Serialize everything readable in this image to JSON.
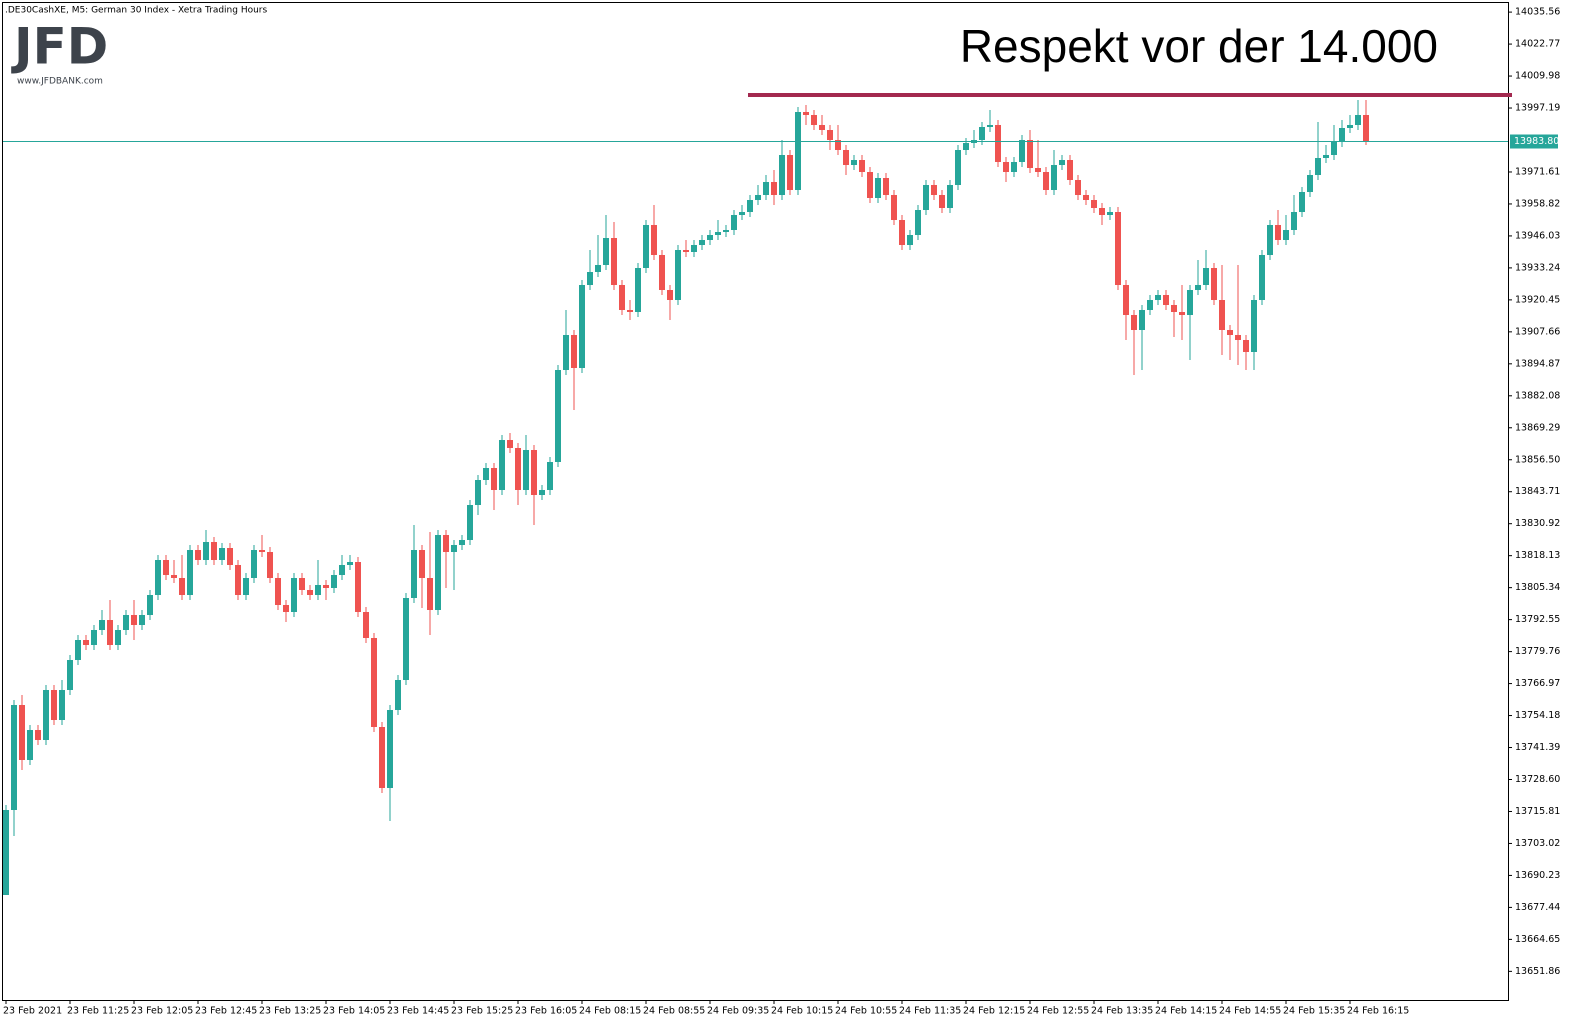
{
  "header": {
    "symbol_line": ".DE30CashXE, M5:  German 30 Index  - Xetra Trading Hours"
  },
  "logo": {
    "text": "JFD",
    "url": "www.JFDBANK.com"
  },
  "chart_data": {
    "type": "candlestick",
    "title": "Respekt vor der 14.000",
    "categories": [
      "23 Feb 2021",
      null,
      null,
      null,
      null,
      null,
      null,
      null,
      "23 Feb 11:25",
      null,
      null,
      null,
      null,
      null,
      null,
      null,
      "23 Feb 12:05",
      null,
      null,
      null,
      null,
      null,
      null,
      null,
      "23 Feb 12:45",
      null,
      null,
      null,
      null,
      null,
      null,
      null,
      "23 Feb 13:25",
      null,
      null,
      null,
      null,
      null,
      null,
      null,
      "23 Feb 14:05",
      null,
      null,
      null,
      null,
      null,
      null,
      null,
      "23 Feb 14:45",
      null,
      null,
      null,
      null,
      null,
      null,
      null,
      "23 Feb 15:25",
      null,
      null,
      null,
      null,
      null,
      null,
      null,
      "23 Feb 16:05",
      null,
      null,
      null,
      null,
      null,
      null,
      null,
      "24 Feb 08:15",
      null,
      null,
      null,
      null,
      null,
      null,
      null,
      "24 Feb 08:55",
      null,
      null,
      null,
      null,
      null,
      null,
      null,
      "24 Feb 09:35",
      null,
      null,
      null,
      null,
      null,
      null,
      null,
      "24 Feb 10:15",
      null,
      null,
      null,
      null,
      null,
      null,
      null,
      "24 Feb 10:55",
      null,
      null,
      null,
      null,
      null,
      null,
      null,
      "24 Feb 11:35",
      null,
      null,
      null,
      null,
      null,
      null,
      null,
      "24 Feb 12:15",
      null,
      null,
      null,
      null,
      null,
      null,
      null,
      "24 Feb 12:55",
      null,
      null,
      null,
      null,
      null,
      null,
      null,
      "24 Feb 13:35",
      null,
      null,
      null,
      null,
      null,
      null,
      null,
      "24 Feb 14:15",
      null,
      null,
      null,
      null,
      null,
      null,
      null,
      "24 Feb 14:55",
      null,
      null,
      null,
      null,
      null,
      null,
      null,
      "24 Feb 15:35",
      null,
      null,
      null,
      null,
      null,
      null,
      null,
      "24 Feb 16:15",
      null,
      null
    ],
    "open": [
      13682.4,
      13716.4,
      13758.4,
      13736.4,
      13748.4,
      13744.4,
      13764.4,
      13752.4,
      13764.4,
      13776.4,
      13784.4,
      13782.4,
      13788.4,
      13792.4,
      13782.4,
      13788.4,
      13794.4,
      13790.4,
      13794.4,
      13802.4,
      13816.4,
      13810.4,
      13809.2,
      13802.4,
      13820.4,
      13816.4,
      13823.6,
      13816.4,
      13821.2,
      13814.4,
      13802.4,
      13809.2,
      13820.4,
      13819.6,
      13809.2,
      13798.4,
      13795.6,
      13809.2,
      13804.4,
      13802.4,
      13806.4,
      13805.2,
      13810.4,
      13814.4,
      13815.6,
      13795.6,
      13785.2,
      13749.6,
      13725.2,
      13756.4,
      13768.4,
      13801.2,
      13820.4,
      13809.2,
      13796.4,
      13826.4,
      13819.6,
      13822.4,
      13824.4,
      13838.4,
      13848.4,
      13853.2,
      13844.4,
      13864.4,
      13861.2,
      13844.4,
      13860.4,
      13842.4,
      13844.4,
      13855.6,
      13892.4,
      13906.4,
      13893.2,
      13926.4,
      13931.6,
      13934.4,
      13945.2,
      13926.4,
      13916.4,
      13915.6,
      13933.2,
      13950.4,
      13938.4,
      13924.4,
      13920.4,
      13940.4,
      13939.6,
      13942.4,
      13944.4,
      13946.4,
      13947.6,
      13948.4,
      13954.4,
      13955.6,
      13960.4,
      13962.4,
      13967.6,
      13962.4,
      13978.4,
      13964.4,
      13995.6,
      13994.4,
      13990.4,
      13988.4,
      13984.4,
      13980.4,
      13974.4,
      13976.4,
      13971.6,
      13961.2,
      13969.2,
      13962.4,
      13952.4,
      13942.4,
      13946.4,
      13956.4,
      13966.4,
      13962.4,
      13957.2,
      13966.4,
      13980.4,
      13983.2,
      13984.4,
      13989.6,
      13990.4,
      13975.6,
      13971.6,
      13975.6,
      13984.4,
      13973.2,
      13971.6,
      13964.4,
      13974.4,
      13976.4,
      13968.4,
      13962.4,
      13960.4,
      13957.2,
      13954.4,
      13955.6,
      13926.4,
      13914.4,
      13908.4,
      13916.4,
      13920.4,
      13922.4,
      13918.4,
      13915.6,
      13914.4,
      13924.4,
      13926.4,
      13933.2,
      13920.4,
      13908.4,
      13906.4,
      13904.4,
      13899.6,
      13920.4,
      13938.4,
      13950.4,
      13944.4,
      13948.4,
      13955.6,
      13963.6,
      13970.4,
      13977.2,
      13978.4,
      13983.6,
      13989.2,
      13990.4,
      13994.4
    ],
    "high": [
      13718.4,
      13760.4,
      13762.4,
      13750.4,
      13750.4,
      13766.4,
      13766.4,
      13768.4,
      13778.4,
      13786.4,
      13786.4,
      13790.4,
      13796.4,
      13800.4,
      13790.4,
      13796.4,
      13800.4,
      13796.4,
      13804.4,
      13818.4,
      13818.4,
      13816.4,
      13818.4,
      13822.4,
      13822.4,
      13828.4,
      13825.6,
      13823.2,
      13823.2,
      13816.4,
      13811.2,
      13822.4,
      13826.4,
      13821.6,
      13811.2,
      13800.4,
      13811.2,
      13811.2,
      13806.4,
      13816.4,
      13808.4,
      13812.4,
      13818.4,
      13818.4,
      13817.6,
      13797.6,
      13787.2,
      13751.6,
      13758.4,
      13770.4,
      13803.2,
      13830.4,
      13822.4,
      13827.6,
      13828.4,
      13828.4,
      13824.4,
      13826.4,
      13840.4,
      13850.4,
      13855.2,
      13855.2,
      13866.4,
      13867.2,
      13863.2,
      13866.4,
      13862.4,
      13846.4,
      13857.6,
      13894.4,
      13916.4,
      13908.4,
      13928.4,
      13940.4,
      13946.4,
      13954.4,
      13951.6,
      13928.4,
      13920.4,
      13935.2,
      13952.4,
      13958.4,
      13940.4,
      13926.4,
      13942.4,
      13944.4,
      13944.4,
      13946.4,
      13948.4,
      13952.4,
      13950.4,
      13956.4,
      13958.4,
      13962.4,
      13966.4,
      13970.4,
      13972.4,
      13984.4,
      13980.4,
      13997.6,
      13998.4,
      13996.4,
      13994.4,
      13990.4,
      13990.4,
      13982.4,
      13978.4,
      13978.4,
      13973.6,
      13971.2,
      13971.2,
      13964.4,
      13954.4,
      13948.4,
      13958.4,
      13968.4,
      13968.4,
      13964.4,
      13968.4,
      13982.4,
      13985.2,
      13988.4,
      13991.6,
      13996.4,
      13992.4,
      13977.6,
      13977.6,
      13986.4,
      13988.4,
      13984.4,
      13973.6,
      13980.4,
      13978.4,
      13978.4,
      13970.4,
      13964.4,
      13962.4,
      13959.2,
      13957.6,
      13957.6,
      13928.4,
      13916.4,
      13918.4,
      13922.4,
      13924.4,
      13924.4,
      13920.4,
      13926.4,
      13926.4,
      13936.4,
      13940.4,
      13935.2,
      13934.4,
      13910.4,
      13934.4,
      13906.4,
      13922.4,
      13940.4,
      13952.4,
      13956.4,
      13954.4,
      13962.4,
      13965.6,
      13972.4,
      13991.6,
      13982.4,
      13990.4,
      13992.4,
      13994.4,
      14000.4,
      14000.4
    ],
    "low": [
      13682.4,
      13706.0,
      13732.4,
      13734.4,
      13742.4,
      13742.4,
      13750.4,
      13750.4,
      13762.4,
      13774.4,
      13780.4,
      13780.4,
      13786.4,
      13780.4,
      13780.4,
      13786.4,
      13784.4,
      13788.4,
      13792.4,
      13800.4,
      13808.4,
      13807.2,
      13800.4,
      13800.4,
      13814.4,
      13814.4,
      13814.4,
      13814.4,
      13812.4,
      13800.4,
      13800.4,
      13807.2,
      13817.6,
      13807.2,
      13796.4,
      13791.6,
      13793.6,
      13802.4,
      13800.4,
      13800.4,
      13800.4,
      13803.2,
      13808.4,
      13812.4,
      13793.6,
      13783.2,
      13747.6,
      13723.2,
      13712.0,
      13754.4,
      13766.4,
      13799.2,
      13797.2,
      13786.4,
      13794.4,
      13805.2,
      13804.4,
      13820.4,
      13822.4,
      13834.4,
      13846.4,
      13836.4,
      13842.4,
      13859.2,
      13838.4,
      13842.4,
      13830.4,
      13840.4,
      13842.4,
      13853.6,
      13890.4,
      13876.4,
      13891.2,
      13924.4,
      13929.6,
      13932.4,
      13924.4,
      13914.4,
      13912.4,
      13913.6,
      13931.2,
      13936.4,
      13922.4,
      13912.4,
      13918.4,
      13937.6,
      13937.6,
      13940.4,
      13942.4,
      13944.4,
      13945.6,
      13946.4,
      13952.4,
      13953.6,
      13958.4,
      13960.4,
      13958.4,
      13960.4,
      13962.4,
      13962.4,
      13990.4,
      13988.4,
      13986.4,
      13980.4,
      13978.4,
      13970.4,
      13972.4,
      13969.6,
      13959.2,
      13959.2,
      13960.4,
      13950.4,
      13940.4,
      13940.4,
      13944.4,
      13954.4,
      13960.4,
      13955.2,
      13955.2,
      13964.4,
      13978.4,
      13981.2,
      13982.4,
      13987.6,
      13973.6,
      13967.6,
      13969.6,
      13973.6,
      13971.2,
      13969.6,
      13962.4,
      13962.4,
      13972.4,
      13966.4,
      13960.4,
      13958.4,
      13955.2,
      13950.4,
      13952.4,
      13924.4,
      13904.4,
      13890.4,
      13892.4,
      13914.4,
      13918.4,
      13916.4,
      13905.6,
      13904.4,
      13896.4,
      13922.4,
      13924.4,
      13918.4,
      13898.4,
      13896.4,
      13894.4,
      13892.4,
      13892.4,
      13918.4,
      13936.4,
      13942.4,
      13942.4,
      13946.4,
      13953.6,
      13961.6,
      13968.4,
      13975.2,
      13976.4,
      13981.6,
      13987.2,
      13988.4,
      13982.4
    ],
    "close": [
      13716.4,
      13758.4,
      13736.4,
      13748.4,
      13744.4,
      13764.4,
      13752.4,
      13764.4,
      13776.4,
      13784.4,
      13782.4,
      13788.4,
      13792.4,
      13782.4,
      13788.4,
      13794.4,
      13790.4,
      13794.4,
      13802.4,
      13816.4,
      13810.4,
      13809.2,
      13802.4,
      13820.4,
      13816.4,
      13823.6,
      13816.4,
      13821.2,
      13814.4,
      13802.4,
      13809.2,
      13820.4,
      13819.6,
      13809.2,
      13798.4,
      13795.6,
      13809.2,
      13804.4,
      13802.4,
      13806.4,
      13805.2,
      13810.4,
      13814.4,
      13815.6,
      13795.6,
      13785.2,
      13749.6,
      13725.2,
      13756.4,
      13768.4,
      13801.2,
      13820.4,
      13809.2,
      13796.4,
      13826.4,
      13819.6,
      13822.4,
      13824.4,
      13838.4,
      13848.4,
      13853.2,
      13844.4,
      13864.4,
      13861.2,
      13844.4,
      13860.4,
      13842.4,
      13844.4,
      13855.6,
      13892.4,
      13906.4,
      13893.2,
      13926.4,
      13931.6,
      13934.4,
      13945.2,
      13926.4,
      13916.4,
      13915.6,
      13933.2,
      13950.4,
      13938.4,
      13924.4,
      13920.4,
      13940.4,
      13939.6,
      13942.4,
      13944.4,
      13946.4,
      13947.6,
      13948.4,
      13954.4,
      13955.6,
      13960.4,
      13962.4,
      13967.6,
      13962.4,
      13978.4,
      13964.4,
      13995.6,
      13994.4,
      13990.4,
      13988.4,
      13984.4,
      13980.4,
      13974.4,
      13976.4,
      13971.6,
      13961.2,
      13969.2,
      13962.4,
      13952.4,
      13942.4,
      13946.4,
      13956.4,
      13966.4,
      13962.4,
      13957.2,
      13966.4,
      13980.4,
      13983.2,
      13984.4,
      13989.6,
      13990.4,
      13975.6,
      13971.6,
      13975.6,
      13984.4,
      13973.2,
      13971.6,
      13964.4,
      13974.4,
      13976.4,
      13968.4,
      13962.4,
      13960.4,
      13957.2,
      13954.4,
      13955.6,
      13926.4,
      13914.4,
      13908.4,
      13916.4,
      13920.4,
      13922.4,
      13918.4,
      13915.6,
      13914.4,
      13924.4,
      13926.4,
      13933.2,
      13920.4,
      13908.4,
      13906.4,
      13904.4,
      13899.6,
      13920.4,
      13938.4,
      13950.4,
      13944.4,
      13948.4,
      13955.6,
      13963.6,
      13970.4,
      13977.2,
      13978.4,
      13983.6,
      13989.2,
      13990.4,
      13994.4,
      13983.8
    ],
    "up_color": "#26a69a",
    "down_color": "#ef5350",
    "ylim": [
      13640.4,
      14040.4
    ],
    "yticks": [
      14035.56,
      14022.77,
      14009.98,
      13997.19,
      13971.61,
      13958.82,
      13946.03,
      13933.24,
      13920.45,
      13907.66,
      13894.87,
      13882.08,
      13869.29,
      {
        "value": 13856.5,
        "label": "13856.50"
      },
      13843.71,
      13830.92,
      13818.13,
      13805.34,
      13792.55,
      13779.76,
      13766.97,
      13754.18,
      13741.39,
      {
        "value": 13728.6,
        "label": "13728.60"
      },
      13715.81,
      13703.02,
      13690.23,
      13677.44,
      13664.65,
      13651.86
    ],
    "price_line": {
      "value": 13983.8,
      "label": "13983.80",
      "color": "#26a69a"
    },
    "resistance_line": {
      "value": 14002.4,
      "color": "#a3294f"
    }
  }
}
